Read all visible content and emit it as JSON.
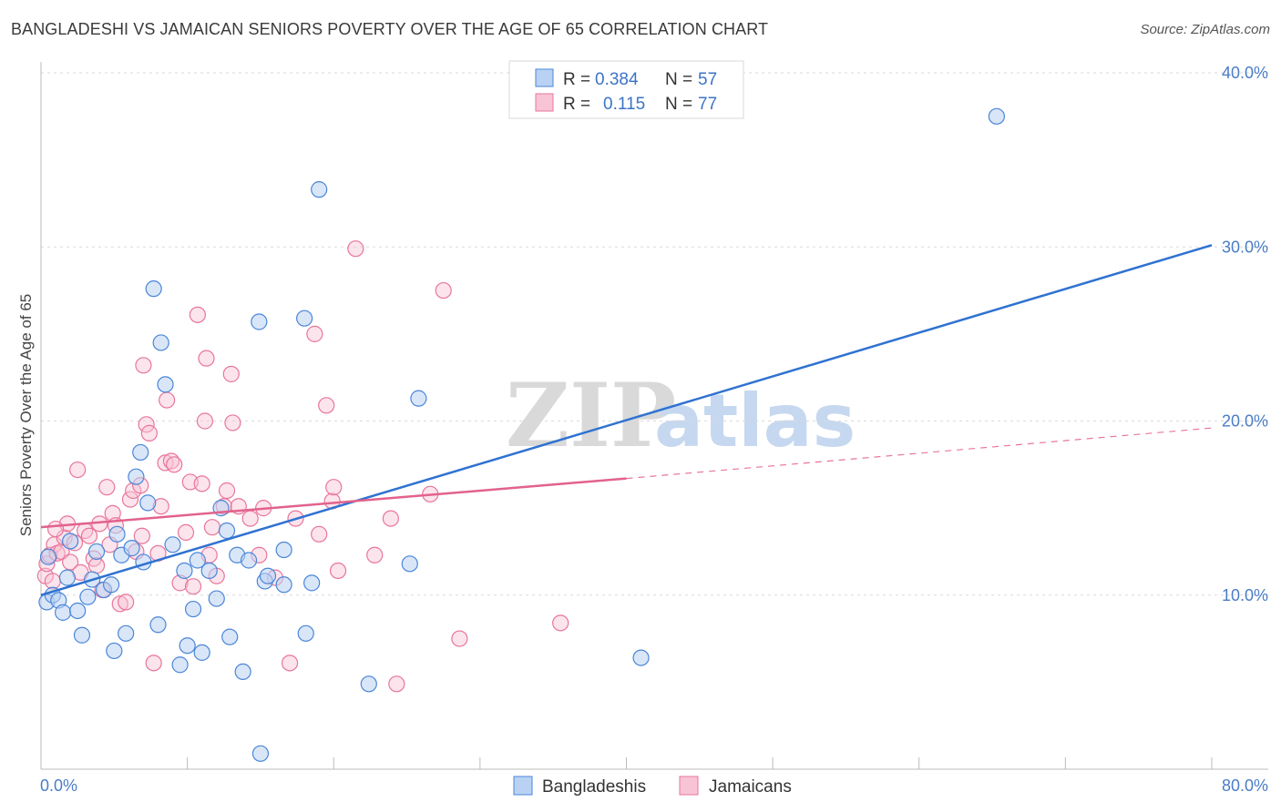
{
  "title": "BANGLADESHI VS JAMAICAN SENIORS POVERTY OVER THE AGE OF 65 CORRELATION CHART",
  "source": "Source: ZipAtlas.com",
  "watermark": {
    "zip": "ZIP",
    "atlas": "atlas"
  },
  "legend": {
    "r_label": "R =",
    "n_label": "N =",
    "rows": [
      {
        "r": "0.384",
        "n": "57"
      },
      {
        "r": "0.115",
        "n": "77"
      }
    ]
  },
  "chart_data": {
    "type": "scatter",
    "title": "BANGLADESHI VS JAMAICAN SENIORS POVERTY OVER THE AGE OF 65 CORRELATION CHART",
    "xlabel": "",
    "ylabel": "Seniors Poverty Over the Age of 65",
    "xlim": [
      0,
      80
    ],
    "ylim": [
      0,
      40
    ],
    "x_tick_labels": [
      "0.0%",
      "80.0%"
    ],
    "y_ticks": [
      10,
      20,
      30,
      40
    ],
    "y_tick_labels": [
      "10.0%",
      "20.0%",
      "30.0%",
      "40.0%"
    ],
    "colors": {
      "bangladeshis": "#4a86d8",
      "jamaicans": "#e8769a"
    },
    "series": [
      {
        "name": "Bangladeshis",
        "color": "#4a86d8",
        "trend": {
          "x": [
            0,
            80
          ],
          "y": [
            10.0,
            30.1
          ],
          "style": "solid"
        },
        "points": [
          [
            0.4,
            9.6
          ],
          [
            0.5,
            12.2
          ],
          [
            0.8,
            10.0
          ],
          [
            1.2,
            9.7
          ],
          [
            1.5,
            9.0
          ],
          [
            1.8,
            11.0
          ],
          [
            2.0,
            13.1
          ],
          [
            2.5,
            9.1
          ],
          [
            2.8,
            7.7
          ],
          [
            3.2,
            9.9
          ],
          [
            3.5,
            10.9
          ],
          [
            3.8,
            12.5
          ],
          [
            4.3,
            10.3
          ],
          [
            4.8,
            10.6
          ],
          [
            5.0,
            6.8
          ],
          [
            5.2,
            13.5
          ],
          [
            5.5,
            12.3
          ],
          [
            5.8,
            7.8
          ],
          [
            6.2,
            12.7
          ],
          [
            6.5,
            16.8
          ],
          [
            6.8,
            18.2
          ],
          [
            7.0,
            11.9
          ],
          [
            7.3,
            15.3
          ],
          [
            7.7,
            27.6
          ],
          [
            8.0,
            8.3
          ],
          [
            8.2,
            24.5
          ],
          [
            8.5,
            22.1
          ],
          [
            9.0,
            12.9
          ],
          [
            9.5,
            6.0
          ],
          [
            9.8,
            11.4
          ],
          [
            10.0,
            7.1
          ],
          [
            10.4,
            9.2
          ],
          [
            10.7,
            12.0
          ],
          [
            11.0,
            6.7
          ],
          [
            11.5,
            11.4
          ],
          [
            12.0,
            9.8
          ],
          [
            12.3,
            15.0
          ],
          [
            12.7,
            13.7
          ],
          [
            12.9,
            7.6
          ],
          [
            13.4,
            12.3
          ],
          [
            13.8,
            5.6
          ],
          [
            14.2,
            12.0
          ],
          [
            14.9,
            25.7
          ],
          [
            15.3,
            10.8
          ],
          [
            15.5,
            11.1
          ],
          [
            15.0,
            0.9
          ],
          [
            16.6,
            12.6
          ],
          [
            16.6,
            10.6
          ],
          [
            18.0,
            25.9
          ],
          [
            18.1,
            7.8
          ],
          [
            18.5,
            10.7
          ],
          [
            19.0,
            33.3
          ],
          [
            22.4,
            4.9
          ],
          [
            25.2,
            11.8
          ],
          [
            25.8,
            21.3
          ],
          [
            41.0,
            6.4
          ],
          [
            65.3,
            37.5
          ]
        ]
      },
      {
        "name": "Jamaicans",
        "color": "#e8769a",
        "trend": {
          "x": [
            0,
            40
          ],
          "y": [
            13.9,
            16.7
          ],
          "style": "solid",
          "extension": {
            "x": [
              40,
              80
            ],
            "y": [
              16.7,
              19.6
            ],
            "style": "dashed"
          }
        },
        "points": [
          [
            0.3,
            11.1
          ],
          [
            0.4,
            11.8
          ],
          [
            0.6,
            12.3
          ],
          [
            0.8,
            10.8
          ],
          [
            0.9,
            12.9
          ],
          [
            1.1,
            12.4
          ],
          [
            1.4,
            12.5
          ],
          [
            1.6,
            13.3
          ],
          [
            1.8,
            14.1
          ],
          [
            2.0,
            11.9
          ],
          [
            2.3,
            13.0
          ],
          [
            2.5,
            17.2
          ],
          [
            2.7,
            11.3
          ],
          [
            3.0,
            13.7
          ],
          [
            3.3,
            13.4
          ],
          [
            3.6,
            12.1
          ],
          [
            3.8,
            11.7
          ],
          [
            4.0,
            14.1
          ],
          [
            4.2,
            10.3
          ],
          [
            4.5,
            16.2
          ],
          [
            4.7,
            12.9
          ],
          [
            4.9,
            14.7
          ],
          [
            5.1,
            14.0
          ],
          [
            5.4,
            9.5
          ],
          [
            5.8,
            9.6
          ],
          [
            6.1,
            15.5
          ],
          [
            6.3,
            16.0
          ],
          [
            6.5,
            12.5
          ],
          [
            6.8,
            16.3
          ],
          [
            6.9,
            13.4
          ],
          [
            7.0,
            23.2
          ],
          [
            7.2,
            19.8
          ],
          [
            7.4,
            19.3
          ],
          [
            7.7,
            6.1
          ],
          [
            8.0,
            12.4
          ],
          [
            8.2,
            15.1
          ],
          [
            8.5,
            17.6
          ],
          [
            8.6,
            21.2
          ],
          [
            8.9,
            17.7
          ],
          [
            9.1,
            17.5
          ],
          [
            9.5,
            10.7
          ],
          [
            9.9,
            13.6
          ],
          [
            10.2,
            16.5
          ],
          [
            10.4,
            10.5
          ],
          [
            10.7,
            26.1
          ],
          [
            11.0,
            16.4
          ],
          [
            11.2,
            20.0
          ],
          [
            11.3,
            23.6
          ],
          [
            11.5,
            12.3
          ],
          [
            11.7,
            13.9
          ],
          [
            12.0,
            11.1
          ],
          [
            12.5,
            15.1
          ],
          [
            12.7,
            16.0
          ],
          [
            13.0,
            22.7
          ],
          [
            13.1,
            19.9
          ],
          [
            13.5,
            15.1
          ],
          [
            14.3,
            14.4
          ],
          [
            14.9,
            12.3
          ],
          [
            15.2,
            15.0
          ],
          [
            16.0,
            11.0
          ],
          [
            17.0,
            6.1
          ],
          [
            17.4,
            14.4
          ],
          [
            18.7,
            25.0
          ],
          [
            19.0,
            13.5
          ],
          [
            19.5,
            20.9
          ],
          [
            19.9,
            15.4
          ],
          [
            20.0,
            16.2
          ],
          [
            20.3,
            11.4
          ],
          [
            21.5,
            29.9
          ],
          [
            22.8,
            12.3
          ],
          [
            23.9,
            14.4
          ],
          [
            24.3,
            4.9
          ],
          [
            26.6,
            15.8
          ],
          [
            27.5,
            27.5
          ],
          [
            28.6,
            7.5
          ],
          [
            35.5,
            8.4
          ],
          [
            1.0,
            13.8
          ]
        ]
      }
    ]
  },
  "bottom_legend": [
    "Bangladeshis",
    "Jamaicans"
  ]
}
